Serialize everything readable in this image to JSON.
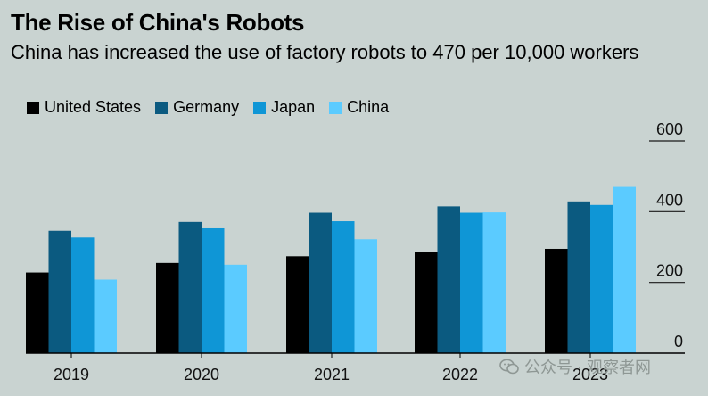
{
  "title": "The Rise of China's Robots",
  "subtitle": "China has increased the use of factory robots to 470 per 10,000 workers",
  "legend": [
    {
      "label": "United States",
      "color": "#000000"
    },
    {
      "label": "Germany",
      "color": "#0b5a80"
    },
    {
      "label": "Japan",
      "color": "#0f96d6"
    },
    {
      "label": "China",
      "color": "#5bcbff"
    }
  ],
  "watermark": "公众号 · 观察者网",
  "chart_data": {
    "type": "bar",
    "title": "The Rise of China's Robots",
    "subtitle": "China has increased the use of factory robots to 470 per 10,000 workers",
    "categories": [
      "2019",
      "2020",
      "2021",
      "2022",
      "2023"
    ],
    "series": [
      {
        "name": "United States",
        "color": "#000000",
        "values": [
          228,
          255,
          274,
          285,
          295
        ]
      },
      {
        "name": "Germany",
        "color": "#0b5a80",
        "values": [
          346,
          371,
          397,
          415,
          429
        ]
      },
      {
        "name": "Japan",
        "color": "#0f96d6",
        "values": [
          327,
          353,
          373,
          397,
          419
        ]
      },
      {
        "name": "China",
        "color": "#5bcbff",
        "values": [
          208,
          250,
          322,
          398,
          470
        ]
      }
    ],
    "ylim": [
      0,
      600
    ],
    "yticks": [
      0,
      200,
      400,
      600
    ],
    "ytick_labels": [
      "0",
      "200",
      "400",
      "600"
    ],
    "grid": true,
    "legend_position": "top-left"
  }
}
